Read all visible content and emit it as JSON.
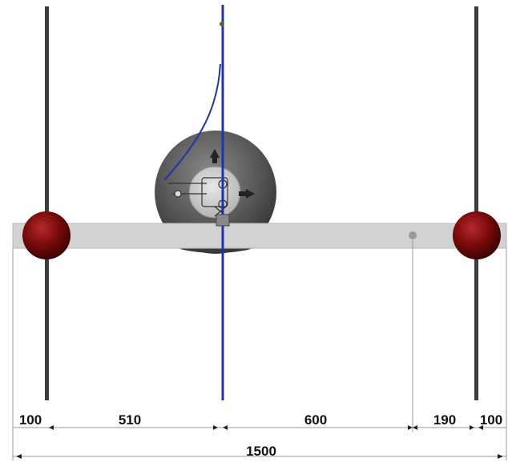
{
  "dimensions": {
    "left_edge": "100",
    "left_span": "510",
    "middle_span": "600",
    "right_span": "190",
    "right_edge": "100",
    "total": "1500"
  },
  "colors": {
    "beam": "#d2d2d2",
    "pole": "#3c3c3c",
    "ball": "#7a0a0a",
    "axis_line": "#2233aa",
    "wheel": "#5a5a5a",
    "hub": "#cfcfcf",
    "dim_line": "#9a9a9a"
  },
  "icons": {
    "ball_markers": "dark-red-sphere",
    "hub": "gear-hub-mechanism"
  }
}
